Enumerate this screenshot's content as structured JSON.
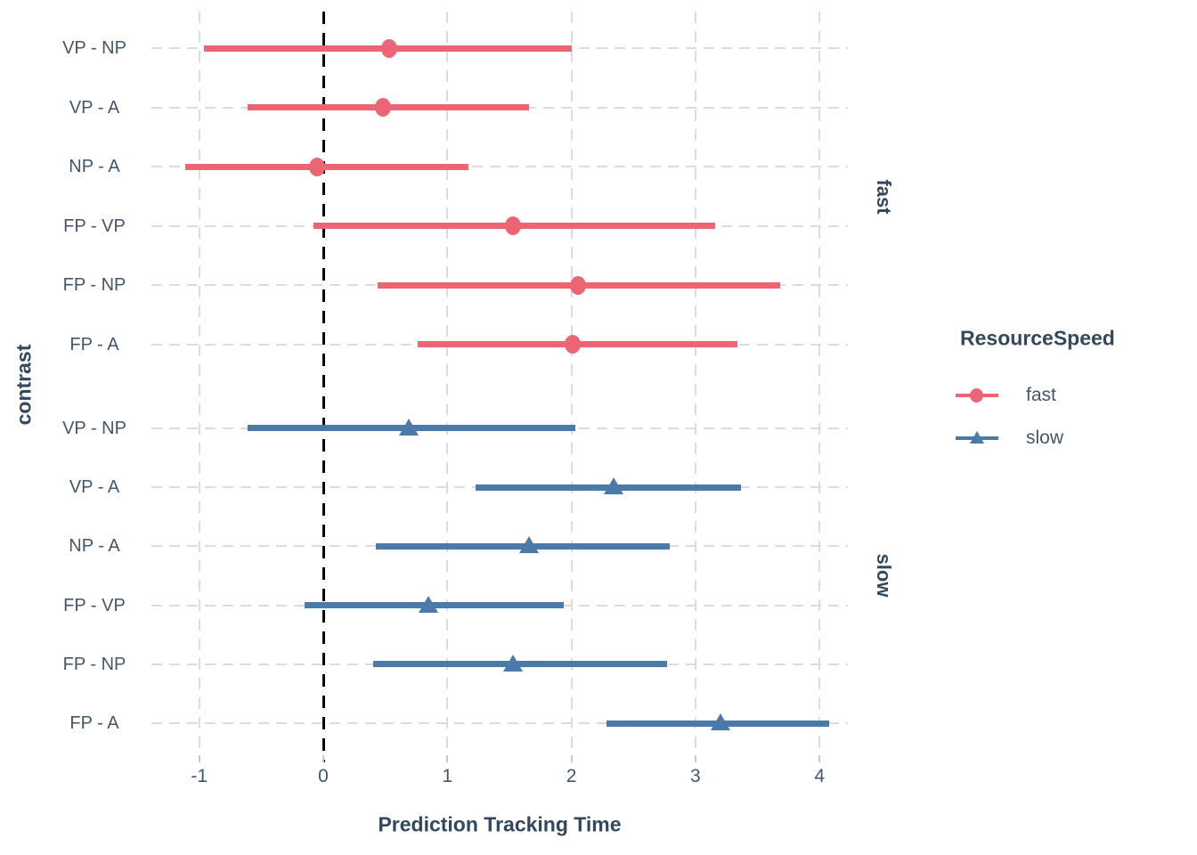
{
  "chart_data": {
    "type": "scatter",
    "variant": "pointrange-forest",
    "title": "",
    "xlabel": "Prediction Tracking Time",
    "ylabel": "contrast",
    "x_ticks": [
      -1,
      0,
      1,
      2,
      3,
      4
    ],
    "xlim": [
      -1.39,
      4.23
    ],
    "grid": "dashed",
    "legend_position": "right",
    "reference_line": {
      "x": 0,
      "style": "dashed",
      "color": "#000000"
    },
    "categories": [
      "VP - NP",
      "VP - A",
      "NP - A",
      "FP - VP",
      "FP - NP",
      "FP - A"
    ],
    "facets": [
      {
        "name": "fast",
        "color": "#EC6575",
        "marker": "circle",
        "rows": [
          {
            "contrast": "VP - NP",
            "estimate": 0.53,
            "lower": -0.96,
            "upper": 2.0
          },
          {
            "contrast": "VP - A",
            "estimate": 0.48,
            "lower": -0.61,
            "upper": 1.66
          },
          {
            "contrast": "NP - A",
            "estimate": -0.05,
            "lower": -1.11,
            "upper": 1.17
          },
          {
            "contrast": "FP - VP",
            "estimate": 1.53,
            "lower": -0.08,
            "upper": 3.16
          },
          {
            "contrast": "FP - NP",
            "estimate": 2.05,
            "lower": 0.44,
            "upper": 3.68
          },
          {
            "contrast": "FP - A",
            "estimate": 2.01,
            "lower": 0.76,
            "upper": 3.34
          }
        ]
      },
      {
        "name": "slow",
        "color": "#4A7AA9",
        "marker": "triangle",
        "rows": [
          {
            "contrast": "VP - NP",
            "estimate": 0.69,
            "lower": -0.61,
            "upper": 2.03
          },
          {
            "contrast": "VP - A",
            "estimate": 2.34,
            "lower": 1.23,
            "upper": 3.37
          },
          {
            "contrast": "NP - A",
            "estimate": 1.66,
            "lower": 0.42,
            "upper": 2.79
          },
          {
            "contrast": "FP - VP",
            "estimate": 0.85,
            "lower": -0.15,
            "upper": 1.94
          },
          {
            "contrast": "FP - NP",
            "estimate": 1.53,
            "lower": 0.4,
            "upper": 2.77
          },
          {
            "contrast": "FP - A",
            "estimate": 3.2,
            "lower": 2.28,
            "upper": 4.08
          }
        ]
      }
    ],
    "legend": {
      "title": "ResourceSpeed",
      "entries": [
        {
          "label": "fast",
          "color": "#EC6575",
          "marker": "circle"
        },
        {
          "label": "slow",
          "color": "#4A7AA9",
          "marker": "triangle"
        }
      ]
    }
  },
  "colors": {
    "fast": "#EC6575",
    "slow": "#4A7AA9",
    "title_text": "#33485C",
    "tick_text": "#44566A",
    "grid": "#DCDCDC",
    "axis_tick_mark": "#C9C9C9",
    "reference_line": "#000000",
    "background": "#FFFFFF"
  }
}
